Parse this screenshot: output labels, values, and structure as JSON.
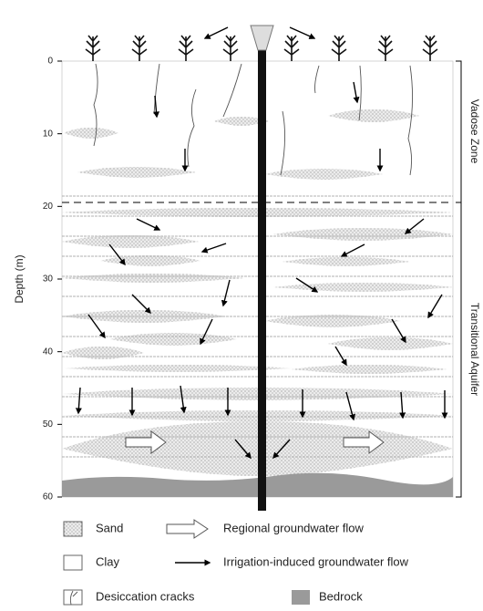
{
  "axis": {
    "label": "Depth (m)",
    "lim": [
      0,
      60
    ],
    "ticks": [
      0,
      10,
      20,
      30,
      40,
      50,
      60
    ]
  },
  "zones": {
    "vadose": "Vadose Zone",
    "transitional": "Transitional Aquifer"
  },
  "legend": {
    "sand": "Sand",
    "regional": "Regional groundwater flow",
    "clay": "Clay",
    "irrigation": "Irrigation-induced groundwater flow",
    "cracks": "Desiccation cracks",
    "bedrock": "Bedrock"
  }
}
